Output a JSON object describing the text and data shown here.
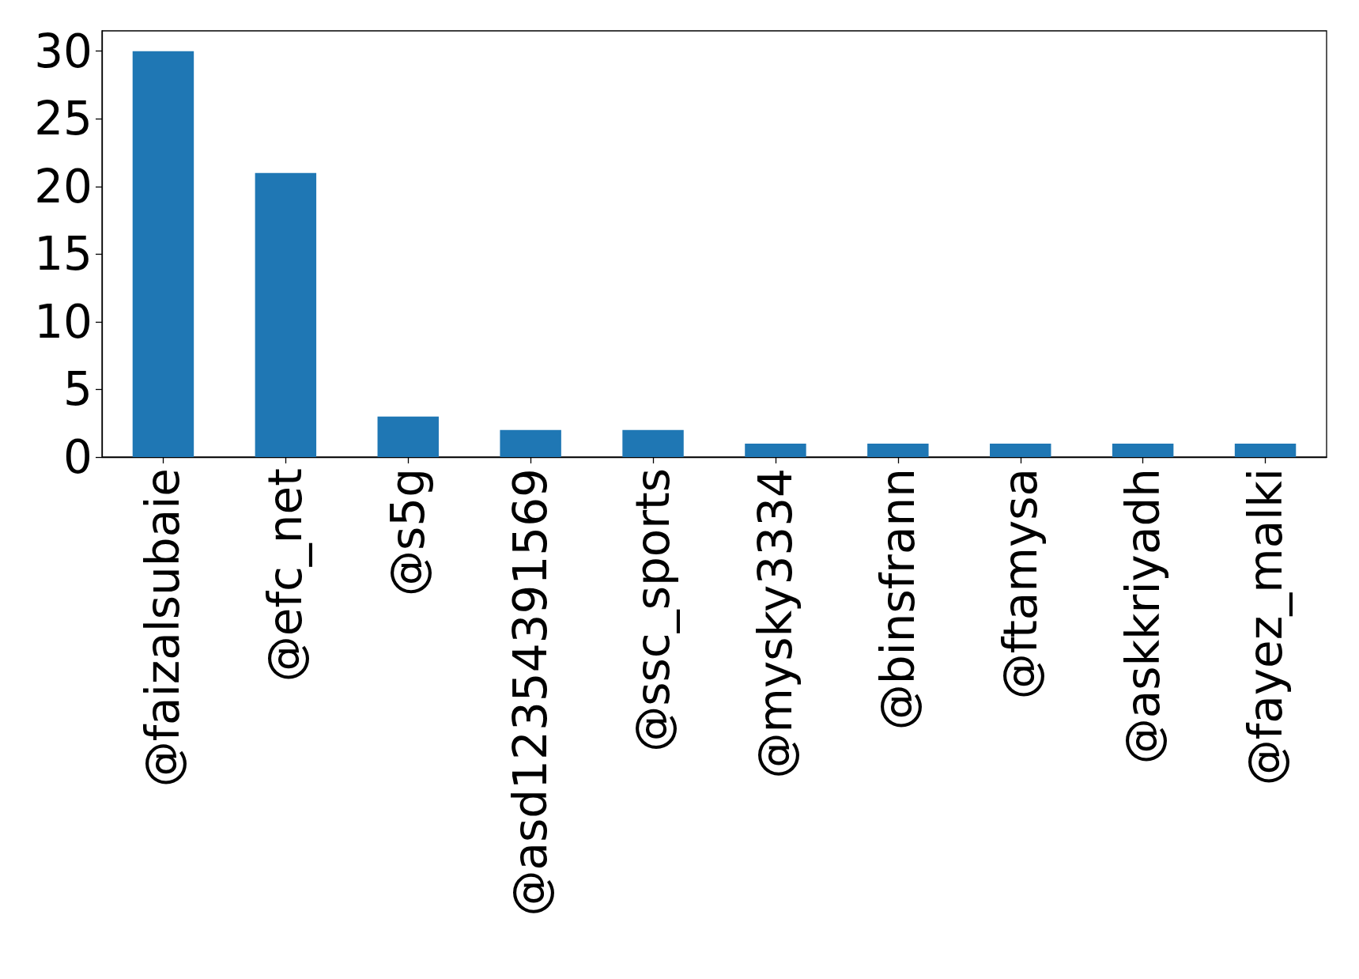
{
  "chart_data": {
    "type": "bar",
    "categories": [
      "@faizalsubaie",
      "@efc_net",
      "@s5g",
      "@asd12354391569",
      "@ssc_sports",
      "@mysky3334",
      "@binsfrann",
      "@ftamysa",
      "@askkriyadh",
      "@fayez_malki"
    ],
    "values": [
      30,
      21,
      3,
      2,
      2,
      1,
      1,
      1,
      1,
      1
    ],
    "color": "#1f77b4",
    "ylim": [
      0,
      31.5
    ],
    "yticks": [
      0,
      5,
      10,
      15,
      20,
      25,
      30
    ],
    "grid": false
  }
}
